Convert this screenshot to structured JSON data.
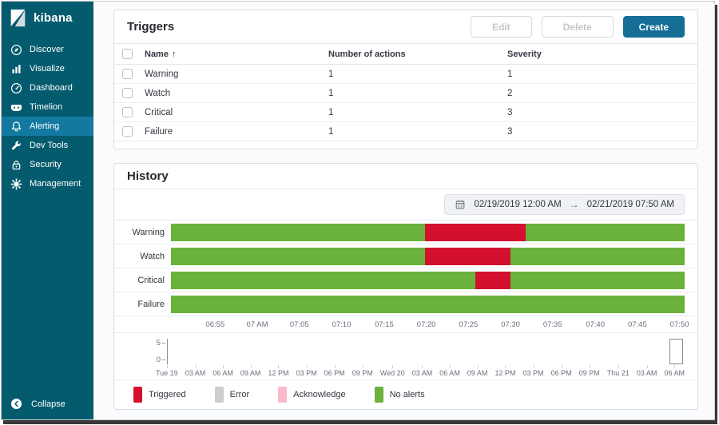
{
  "brand": {
    "name": "kibana"
  },
  "colors": {
    "sidebar_bg": "#045b6e",
    "sidebar_selected": "#1379a0",
    "primary_button": "#146e96",
    "triggered_red": "#d3112e",
    "no_alerts_green": "#6ab23b",
    "error_gray": "#cdcdcd",
    "acknowledge_pink": "#f8b9c8"
  },
  "sidebar": {
    "items": [
      {
        "label": "Discover",
        "icon": "discover-icon",
        "selected": false
      },
      {
        "label": "Visualize",
        "icon": "visualize-icon",
        "selected": false
      },
      {
        "label": "Dashboard",
        "icon": "dashboard-icon",
        "selected": false
      },
      {
        "label": "Timelion",
        "icon": "timelion-icon",
        "selected": false
      },
      {
        "label": "Alerting",
        "icon": "alerting-icon",
        "selected": true
      },
      {
        "label": "Dev Tools",
        "icon": "dev-tools-icon",
        "selected": false
      },
      {
        "label": "Security",
        "icon": "security-icon",
        "selected": false
      },
      {
        "label": "Management",
        "icon": "management-icon",
        "selected": false
      }
    ],
    "collapse": {
      "label": "Collapse",
      "icon": "collapse-circle-icon"
    }
  },
  "triggers_panel": {
    "title": "Triggers",
    "edit_button": "Edit",
    "delete_button": "Delete",
    "create_button": "Create",
    "table": {
      "columns": {
        "name": "Name",
        "actions": "Number of actions",
        "severity": "Severity"
      },
      "sort_arrow": "↑",
      "rows": [
        {
          "name": "Warning",
          "actions": "1",
          "severity": "1"
        },
        {
          "name": "Watch",
          "actions": "1",
          "severity": "2"
        },
        {
          "name": "Critical",
          "actions": "1",
          "severity": "3"
        },
        {
          "name": "Failure",
          "actions": "1",
          "severity": "3"
        }
      ]
    }
  },
  "history_panel": {
    "title": "History",
    "date_range": {
      "start": "02/19/2019 12:00 AM",
      "separator": "→",
      "end": "02/21/2019 07:50 AM"
    }
  },
  "chart_data": [
    {
      "type": "timeline",
      "title": "History status timeline",
      "rows": [
        {
          "label": "Warning",
          "base_status": "No alerts",
          "triggered": {
            "from": "07:20",
            "to": "07:32",
            "left_pct": 49.4,
            "width_pct": 19.6
          }
        },
        {
          "label": "Watch",
          "base_status": "No alerts",
          "triggered": {
            "from": "07:20",
            "to": "07:30",
            "left_pct": 49.4,
            "width_pct": 16.7
          }
        },
        {
          "label": "Critical",
          "base_status": "No alerts",
          "triggered": {
            "from": "07:26",
            "to": "07:30",
            "left_pct": 59.2,
            "width_pct": 6.9
          }
        },
        {
          "label": "Failure",
          "base_status": "No alerts",
          "triggered": null
        }
      ],
      "x_ticks": [
        {
          "label": "06:55",
          "pct": 8.6
        },
        {
          "label": "07 AM",
          "pct": 16.8
        },
        {
          "label": "07:05",
          "pct": 25.0
        },
        {
          "label": "07:10",
          "pct": 33.2
        },
        {
          "label": "07:15",
          "pct": 41.5
        },
        {
          "label": "07:20",
          "pct": 49.7
        },
        {
          "label": "07:25",
          "pct": 57.9
        },
        {
          "label": "07:30",
          "pct": 66.1
        },
        {
          "label": "07:35",
          "pct": 74.3
        },
        {
          "label": "07:40",
          "pct": 82.6
        },
        {
          "label": "07:45",
          "pct": 90.8
        },
        {
          "label": "07:50",
          "pct": 99.0
        }
      ],
      "legend": [
        {
          "label": "Triggered",
          "color": "#d3112e"
        },
        {
          "label": "Error",
          "color": "#cdcdcd"
        },
        {
          "label": "Acknowledge",
          "color": "#f8b9c8"
        },
        {
          "label": "No alerts",
          "color": "#6ab23b"
        }
      ],
      "legend_position": "bottom"
    },
    {
      "type": "overview-brush",
      "ylim": [
        0,
        5
      ],
      "y_ticks": [
        "5",
        "0"
      ],
      "x_ticks": [
        "Tue 19",
        "03 AM",
        "06 AM",
        "09 AM",
        "12 PM",
        "03 PM",
        "06 PM",
        "09 PM",
        "Wed 20",
        "03 AM",
        "06 AM",
        "09 AM",
        "12 PM",
        "03 PM",
        "06 PM",
        "09 PM",
        "Thu 21",
        "03 AM",
        "06 AM"
      ],
      "values": [],
      "brush": {
        "position": "right"
      }
    }
  ]
}
